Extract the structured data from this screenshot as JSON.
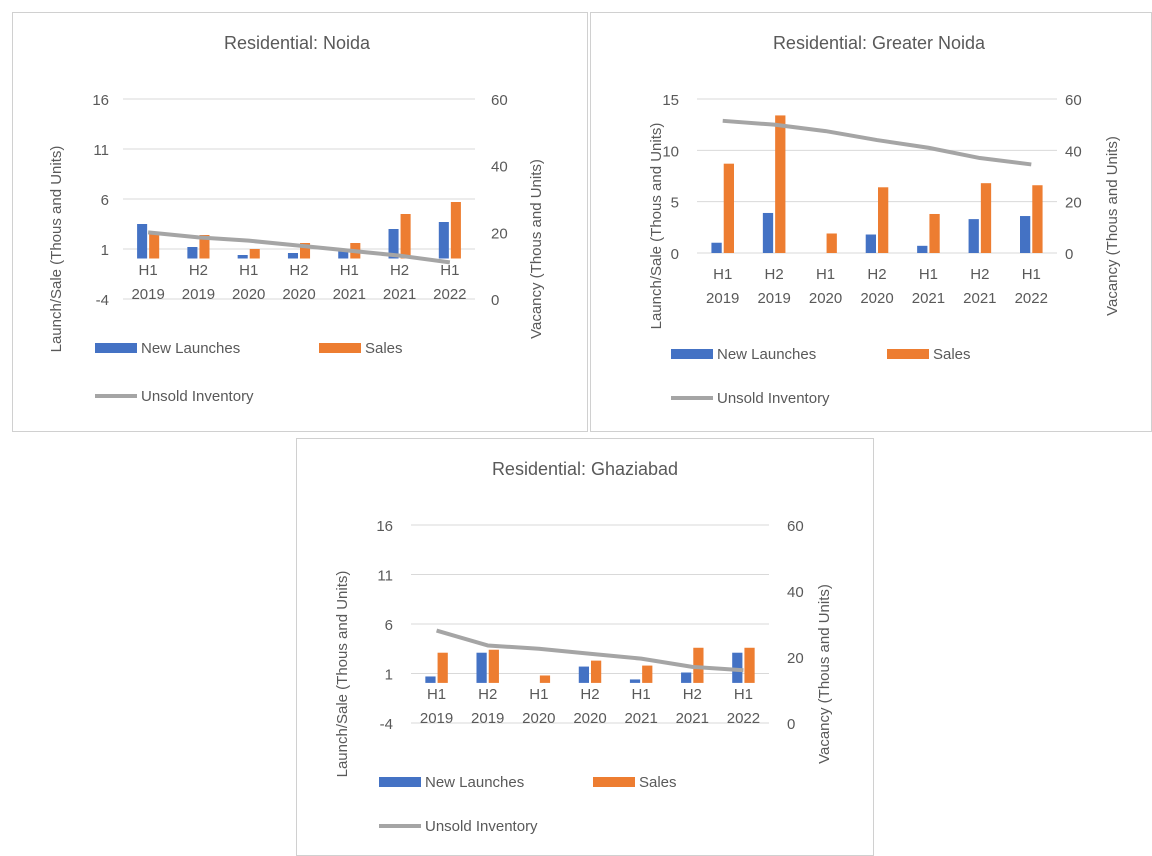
{
  "legend_labels": {
    "new_launches": "New Launches",
    "sales": "Sales",
    "unsold": "Unsold Inventory"
  },
  "colors": {
    "new_launches": "#4472C4",
    "sales": "#ED7D31",
    "unsold": "#A5A5A5",
    "grid": "#D9D9D9",
    "text": "#595959"
  },
  "chart_data": [
    {
      "type": "bar",
      "title": "Residential: Noida",
      "ylabel": "Launch/Sale (Thous and Units)",
      "y2label": "Vacancy (Thous and Units)",
      "ylim": [
        -4,
        16
      ],
      "yticks": [
        -4,
        1,
        6,
        11,
        16
      ],
      "y2lim": [
        0,
        60
      ],
      "y2ticks": [
        0,
        20,
        40,
        60
      ],
      "grid": true,
      "legend_position": "bottom",
      "categories": [
        [
          "H1",
          "2019"
        ],
        [
          "H2",
          "2019"
        ],
        [
          "H1",
          "2020"
        ],
        [
          "H2",
          "2020"
        ],
        [
          "H1",
          "2021"
        ],
        [
          "H2",
          "2021"
        ],
        [
          "H1",
          "2022"
        ]
      ],
      "series": [
        {
          "name": "New Launches",
          "kind": "bar",
          "axis": "left",
          "values": [
            3.5,
            1.2,
            0.4,
            0.6,
            0.8,
            3.0,
            3.7
          ]
        },
        {
          "name": "Sales",
          "kind": "bar",
          "axis": "left",
          "values": [
            2.5,
            2.4,
            1.0,
            1.6,
            1.6,
            4.5,
            5.7
          ]
        },
        {
          "name": "Unsold Inventory",
          "kind": "line",
          "axis": "right",
          "values": [
            20,
            18.5,
            17.5,
            16,
            14.5,
            13,
            11
          ]
        }
      ]
    },
    {
      "type": "bar",
      "title": "Residential: Greater Noida",
      "ylabel": "Launch/Sale (Thous and Units)",
      "y2label": "Vacancy (Thous and Units)",
      "ylim": [
        0,
        15
      ],
      "yticks": [
        0,
        5,
        10,
        15
      ],
      "y2lim": [
        0,
        60
      ],
      "y2ticks": [
        0,
        20,
        40,
        60
      ],
      "grid": true,
      "legend_position": "bottom",
      "categories": [
        [
          "H1",
          "2019"
        ],
        [
          "H2",
          "2019"
        ],
        [
          "H1",
          "2020"
        ],
        [
          "H2",
          "2020"
        ],
        [
          "H1",
          "2021"
        ],
        [
          "H2",
          "2021"
        ],
        [
          "H1",
          "2022"
        ]
      ],
      "series": [
        {
          "name": "New Launches",
          "kind": "bar",
          "axis": "left",
          "values": [
            1.0,
            3.9,
            0,
            1.8,
            0.7,
            3.3,
            3.6
          ]
        },
        {
          "name": "Sales",
          "kind": "bar",
          "axis": "left",
          "values": [
            8.7,
            13.4,
            1.9,
            6.4,
            3.8,
            6.8,
            6.6
          ]
        },
        {
          "name": "Unsold Inventory",
          "kind": "line",
          "axis": "right",
          "values": [
            51.5,
            50,
            47.5,
            44,
            41,
            37,
            34.5
          ]
        }
      ]
    },
    {
      "type": "bar",
      "title": "Residential: Ghaziabad",
      "ylabel": "Launch/Sale (Thous and Units)",
      "y2label": "Vacancy (Thous and Units)",
      "ylim": [
        -4,
        16
      ],
      "yticks": [
        -4,
        1,
        6,
        11,
        16
      ],
      "y2lim": [
        0,
        60
      ],
      "y2ticks": [
        0,
        20,
        40,
        60
      ],
      "grid": true,
      "legend_position": "bottom",
      "categories": [
        [
          "H1",
          "2019"
        ],
        [
          "H2",
          "2019"
        ],
        [
          "H1",
          "2020"
        ],
        [
          "H2",
          "2020"
        ],
        [
          "H1",
          "2021"
        ],
        [
          "H2",
          "2021"
        ],
        [
          "H1",
          "2022"
        ]
      ],
      "series": [
        {
          "name": "New Launches",
          "kind": "bar",
          "axis": "left",
          "values": [
            0.7,
            3.1,
            0,
            1.7,
            0.4,
            1.1,
            3.1
          ]
        },
        {
          "name": "Sales",
          "kind": "bar",
          "axis": "left",
          "values": [
            3.1,
            3.4,
            0.8,
            2.3,
            1.8,
            3.6,
            3.6
          ]
        },
        {
          "name": "Unsold Inventory",
          "kind": "line",
          "axis": "right",
          "values": [
            28,
            23.5,
            22.5,
            21,
            19.5,
            17,
            16
          ]
        }
      ]
    }
  ]
}
